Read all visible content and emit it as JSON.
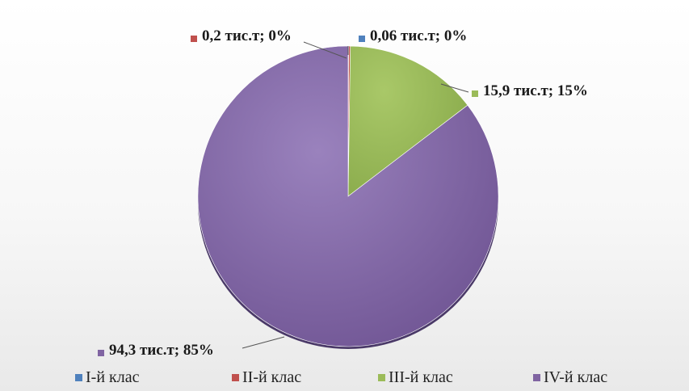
{
  "chart_data": {
    "type": "pie",
    "title": "",
    "categories": [
      "I-й клас",
      "II-й клас",
      "III-й клас",
      "IV-й клас"
    ],
    "values": [
      0.06,
      0.2,
      15.9,
      94.3
    ],
    "data_labels": [
      "0,06 тис.т; 0%",
      "0,2 тис.т; 0%",
      "15,9 тис.т; 15%",
      "94,3 тис.т; 85%"
    ],
    "colors": [
      "#4f81bd",
      "#c0504d",
      "#9bbb59",
      "#8064a2"
    ],
    "legend_position": "bottom"
  },
  "legend": {
    "items": [
      {
        "label": "I-й клас",
        "color": "#4f81bd"
      },
      {
        "label": "II-й клас",
        "color": "#c0504d"
      },
      {
        "label": "III-й клас",
        "color": "#9bbb59"
      },
      {
        "label": "IV-й клас",
        "color": "#8064a2"
      }
    ]
  }
}
